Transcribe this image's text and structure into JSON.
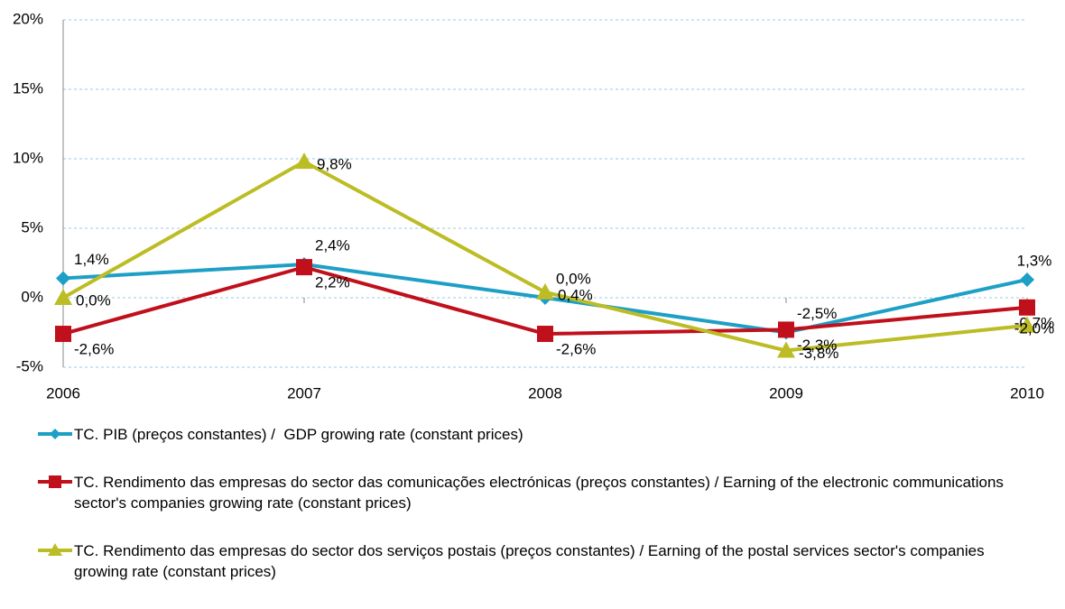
{
  "chart_data": {
    "type": "line",
    "categories": [
      "2006",
      "2007",
      "2008",
      "2009",
      "2010"
    ],
    "ylim": [
      -5,
      20
    ],
    "yticks": [
      {
        "value": -5,
        "label": "-5%"
      },
      {
        "value": 0,
        "label": "0%"
      },
      {
        "value": 5,
        "label": "5%"
      },
      {
        "value": 10,
        "label": "10%"
      },
      {
        "value": 15,
        "label": "15%"
      },
      {
        "value": 20,
        "label": "20%"
      }
    ],
    "grid": true,
    "legend": "bottom",
    "series": [
      {
        "name": "TC. PIB (preços constantes) /  GDP growing rate (constant prices)",
        "color": "#1e9fc6",
        "marker": "diamond",
        "values": [
          1.4,
          2.4,
          0.0,
          -2.5,
          1.3
        ],
        "value_labels": [
          "1,4%",
          "2,4%",
          "0,0%",
          "-2,5%",
          "1,3%"
        ]
      },
      {
        "name": "TC. Rendimento das empresas do sector das comunicações electrónicas (preços constantes) / Earning of the electronic communications sector's companies growing rate (constant prices)",
        "color": "#c0101c",
        "marker": "square",
        "values": [
          -2.6,
          2.2,
          -2.6,
          -2.3,
          -0.7
        ],
        "value_labels": [
          "-2,6%",
          "2,2%",
          "-2,6%",
          "-2,3%",
          "-0,7%"
        ]
      },
      {
        "name": "TC. Rendimento das empresas do sector dos serviços postais (preços constantes) / Earning of the postal services sector's companies growing rate (constant prices)",
        "color": "#bcbc24",
        "marker": "triangle",
        "values": [
          0.0,
          9.8,
          0.4,
          -3.8,
          -2.0
        ],
        "value_labels": [
          "0,0%",
          "9,8%",
          "0,4%",
          "-3,8%",
          "-2,0%"
        ]
      }
    ]
  }
}
